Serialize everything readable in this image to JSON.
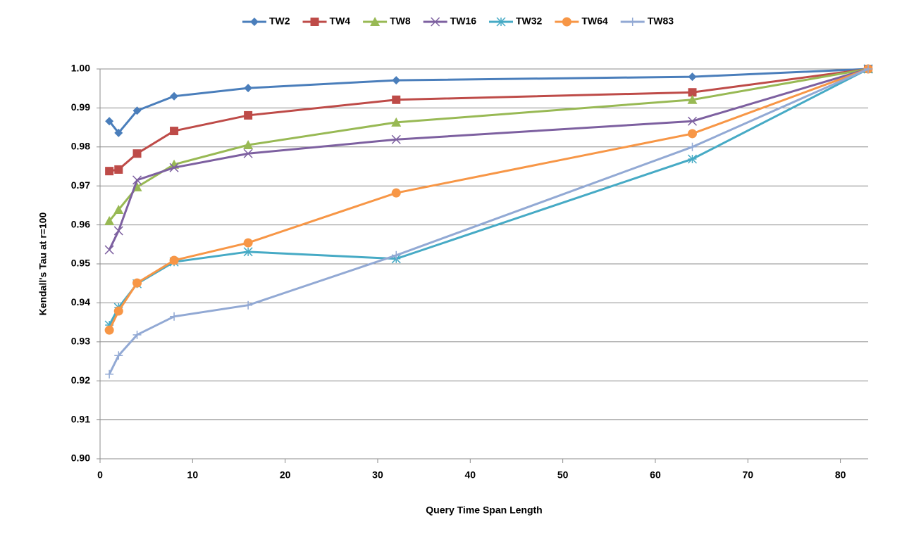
{
  "chart_data": {
    "type": "line",
    "x": [
      1,
      2,
      4,
      8,
      16,
      32,
      64,
      83
    ],
    "series": [
      {
        "name": "TW2",
        "color": "#4a7ebb",
        "marker": "diamond",
        "values": [
          0.9866,
          0.9836,
          0.9893,
          0.993,
          0.9951,
          0.9971,
          0.998,
          1.0
        ]
      },
      {
        "name": "TW4",
        "color": "#be4b48",
        "marker": "square",
        "values": [
          0.9738,
          0.9742,
          0.9783,
          0.9841,
          0.9881,
          0.9921,
          0.994,
          1.0
        ]
      },
      {
        "name": "TW8",
        "color": "#98b954",
        "marker": "triangle",
        "values": [
          0.961,
          0.9639,
          0.9697,
          0.9755,
          0.9805,
          0.9863,
          0.9921,
          1.0
        ]
      },
      {
        "name": "TW16",
        "color": "#7d60a0",
        "marker": "x",
        "values": [
          0.9536,
          0.9585,
          0.9715,
          0.9747,
          0.9783,
          0.9819,
          0.9866,
          1.0
        ]
      },
      {
        "name": "TW32",
        "color": "#46aac5",
        "marker": "star",
        "values": [
          0.9343,
          0.9388,
          0.9449,
          0.9505,
          0.9531,
          0.9513,
          0.9769,
          1.0
        ]
      },
      {
        "name": "TW64",
        "color": "#f79646",
        "marker": "circle",
        "values": [
          0.933,
          0.9379,
          0.9451,
          0.9509,
          0.9554,
          0.9682,
          0.9834,
          1.0
        ]
      },
      {
        "name": "TW83",
        "color": "#92a9d4",
        "marker": "plus",
        "values": [
          0.9217,
          0.9265,
          0.9318,
          0.9365,
          0.9394,
          0.9522,
          0.98,
          1.0
        ]
      }
    ],
    "xlabel": "Query Time Span Length",
    "ylabel": "Kendall's Tau at r=100",
    "xlim": [
      0,
      83
    ],
    "xticks": [
      0,
      10,
      20,
      30,
      40,
      50,
      60,
      70,
      80
    ],
    "ylim": [
      0.9,
      1.0
    ],
    "yticks": [
      {
        "value": 0.9,
        "label": "0.90"
      },
      0.91,
      0.92,
      0.93,
      0.94,
      0.95,
      0.96,
      0.97,
      0.98,
      0.99,
      {
        "value": 1.0,
        "label": "1.00"
      }
    ],
    "grid": true,
    "legend": "top"
  }
}
